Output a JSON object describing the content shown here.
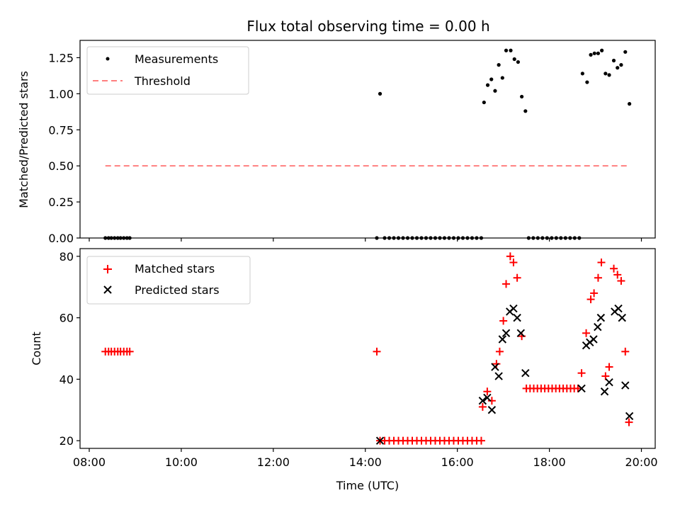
{
  "chart_data": {
    "title": "Flux total observing time = 0.00 h",
    "shared_x": {
      "label": "Time (UTC)",
      "unit": "hours UTC",
      "range": [
        7.8,
        20.3
      ],
      "ticks": [
        8,
        10,
        12,
        14,
        16,
        18,
        20
      ],
      "tick_labels": [
        "08:00",
        "10:00",
        "12:00",
        "14:00",
        "16:00",
        "18:00",
        "20:00"
      ]
    },
    "panels": [
      {
        "id": "ratio",
        "type": "scatter",
        "ylabel": "Matched/Predicted stars",
        "ylim": [
          0,
          1.37
        ],
        "yticks": [
          0.0,
          0.25,
          0.5,
          0.75,
          1.0,
          1.25
        ],
        "ytick_labels": [
          "0.00",
          "0.25",
          "0.50",
          "0.75",
          "1.00",
          "1.25"
        ],
        "legend": "top-left",
        "series": [
          {
            "name": "Measurements",
            "marker": "dot",
            "color": "#000000",
            "points": [
              [
                8.35,
                0
              ],
              [
                8.42,
                0
              ],
              [
                8.48,
                0
              ],
              [
                8.55,
                0
              ],
              [
                8.62,
                0
              ],
              [
                8.68,
                0
              ],
              [
                8.75,
                0
              ],
              [
                8.82,
                0
              ],
              [
                8.88,
                0
              ],
              [
                14.25,
                0
              ],
              [
                14.32,
                1.0
              ],
              [
                14.42,
                0
              ],
              [
                14.52,
                0
              ],
              [
                14.62,
                0
              ],
              [
                14.72,
                0
              ],
              [
                14.82,
                0
              ],
              [
                14.92,
                0
              ],
              [
                15.02,
                0
              ],
              [
                15.12,
                0
              ],
              [
                15.22,
                0
              ],
              [
                15.32,
                0
              ],
              [
                15.42,
                0
              ],
              [
                15.52,
                0
              ],
              [
                15.62,
                0
              ],
              [
                15.72,
                0
              ],
              [
                15.82,
                0
              ],
              [
                15.92,
                0
              ],
              [
                16.02,
                0
              ],
              [
                16.12,
                0
              ],
              [
                16.22,
                0
              ],
              [
                16.32,
                0
              ],
              [
                16.42,
                0
              ],
              [
                16.52,
                0
              ],
              [
                16.58,
                0.94
              ],
              [
                16.66,
                1.06
              ],
              [
                16.74,
                1.1
              ],
              [
                16.82,
                1.02
              ],
              [
                16.9,
                1.2
              ],
              [
                16.98,
                1.11
              ],
              [
                17.06,
                1.3
              ],
              [
                17.16,
                1.3
              ],
              [
                17.24,
                1.24
              ],
              [
                17.32,
                1.22
              ],
              [
                17.4,
                0.98
              ],
              [
                17.48,
                0.88
              ],
              [
                17.55,
                0
              ],
              [
                17.65,
                0
              ],
              [
                17.75,
                0
              ],
              [
                17.85,
                0
              ],
              [
                17.95,
                0
              ],
              [
                18.05,
                0
              ],
              [
                18.15,
                0
              ],
              [
                18.25,
                0
              ],
              [
                18.35,
                0
              ],
              [
                18.45,
                0
              ],
              [
                18.55,
                0
              ],
              [
                18.65,
                0
              ],
              [
                18.72,
                1.14
              ],
              [
                18.82,
                1.08
              ],
              [
                18.9,
                1.27
              ],
              [
                18.98,
                1.28
              ],
              [
                19.06,
                1.28
              ],
              [
                19.14,
                1.3
              ],
              [
                19.22,
                1.14
              ],
              [
                19.3,
                1.13
              ],
              [
                19.4,
                1.23
              ],
              [
                19.48,
                1.18
              ],
              [
                19.56,
                1.2
              ],
              [
                19.65,
                1.29
              ],
              [
                19.74,
                0.93
              ]
            ]
          },
          {
            "name": "Threshold",
            "marker": "dashed-line",
            "color": "#ff7f7f",
            "points": [
              [
                8.35,
                0.5
              ],
              [
                19.75,
                0.5
              ]
            ]
          }
        ]
      },
      {
        "id": "counts",
        "type": "scatter",
        "ylabel": "Count",
        "ylim": [
          17.5,
          82.5
        ],
        "yticks": [
          20,
          40,
          60,
          80
        ],
        "ytick_labels": [
          "20",
          "40",
          "60",
          "80"
        ],
        "legend": "top-left",
        "series": [
          {
            "name": "Matched stars",
            "marker": "plus",
            "color": "#ff0000",
            "points": [
              [
                8.35,
                49
              ],
              [
                8.42,
                49
              ],
              [
                8.48,
                49
              ],
              [
                8.55,
                49
              ],
              [
                8.62,
                49
              ],
              [
                8.68,
                49
              ],
              [
                8.75,
                49
              ],
              [
                8.82,
                49
              ],
              [
                8.88,
                49
              ],
              [
                14.25,
                49
              ],
              [
                14.32,
                20
              ],
              [
                14.42,
                20
              ],
              [
                14.52,
                20
              ],
              [
                14.62,
                20
              ],
              [
                14.72,
                20
              ],
              [
                14.82,
                20
              ],
              [
                14.92,
                20
              ],
              [
                15.02,
                20
              ],
              [
                15.12,
                20
              ],
              [
                15.22,
                20
              ],
              [
                15.32,
                20
              ],
              [
                15.42,
                20
              ],
              [
                15.52,
                20
              ],
              [
                15.62,
                20
              ],
              [
                15.72,
                20
              ],
              [
                15.82,
                20
              ],
              [
                15.92,
                20
              ],
              [
                16.02,
                20
              ],
              [
                16.12,
                20
              ],
              [
                16.22,
                20
              ],
              [
                16.32,
                20
              ],
              [
                16.42,
                20
              ],
              [
                16.52,
                20
              ],
              [
                16.55,
                31
              ],
              [
                16.65,
                36
              ],
              [
                16.75,
                33
              ],
              [
                16.85,
                45
              ],
              [
                16.92,
                49
              ],
              [
                17.0,
                59
              ],
              [
                17.06,
                71
              ],
              [
                17.15,
                80
              ],
              [
                17.22,
                78
              ],
              [
                17.3,
                73
              ],
              [
                17.4,
                54
              ],
              [
                17.5,
                37
              ],
              [
                17.58,
                37
              ],
              [
                17.66,
                37
              ],
              [
                17.74,
                37
              ],
              [
                17.82,
                37
              ],
              [
                17.9,
                37
              ],
              [
                17.98,
                37
              ],
              [
                18.06,
                37
              ],
              [
                18.14,
                37
              ],
              [
                18.22,
                37
              ],
              [
                18.3,
                37
              ],
              [
                18.38,
                37
              ],
              [
                18.46,
                37
              ],
              [
                18.54,
                37
              ],
              [
                18.62,
                37
              ],
              [
                18.7,
                42
              ],
              [
                18.8,
                55
              ],
              [
                18.9,
                66
              ],
              [
                18.97,
                68
              ],
              [
                19.06,
                73
              ],
              [
                19.13,
                78
              ],
              [
                19.22,
                41
              ],
              [
                19.3,
                44
              ],
              [
                19.4,
                76
              ],
              [
                19.48,
                74
              ],
              [
                19.56,
                72
              ],
              [
                19.65,
                49
              ],
              [
                19.73,
                26
              ]
            ]
          },
          {
            "name": "Predicted stars",
            "marker": "x",
            "color": "#000000",
            "points": [
              [
                14.32,
                20
              ],
              [
                16.55,
                33
              ],
              [
                16.65,
                34
              ],
              [
                16.75,
                30
              ],
              [
                16.82,
                44
              ],
              [
                16.9,
                41
              ],
              [
                16.98,
                53
              ],
              [
                17.06,
                55
              ],
              [
                17.14,
                62
              ],
              [
                17.22,
                63
              ],
              [
                17.3,
                60
              ],
              [
                17.38,
                55
              ],
              [
                17.48,
                42
              ],
              [
                18.7,
                37
              ],
              [
                18.8,
                51
              ],
              [
                18.88,
                52
              ],
              [
                18.96,
                53
              ],
              [
                19.05,
                57
              ],
              [
                19.12,
                60
              ],
              [
                19.2,
                36
              ],
              [
                19.3,
                39
              ],
              [
                19.42,
                62
              ],
              [
                19.5,
                63
              ],
              [
                19.58,
                60
              ],
              [
                19.65,
                38
              ],
              [
                19.74,
                28
              ]
            ]
          }
        ]
      }
    ]
  }
}
